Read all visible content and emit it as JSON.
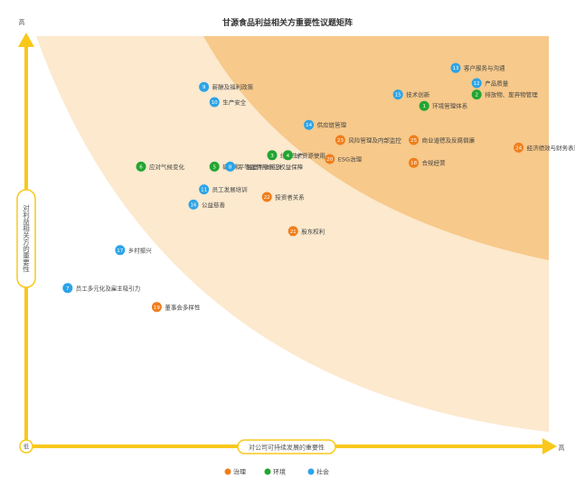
{
  "chart_data": {
    "type": "scatter",
    "title": "甘源食品利益相关方重要性议题矩阵",
    "xlabel": "对公司可持续发展的重要性",
    "ylabel": "对利益相关方的重要性",
    "x_high": "高",
    "y_high": "高",
    "origin_label": "低",
    "categories": [
      {
        "key": "gov",
        "name": "治理",
        "color": "#F07E1B"
      },
      {
        "key": "env",
        "name": "环境",
        "color": "#22A631"
      },
      {
        "key": "soc",
        "name": "社会",
        "color": "#2CA4E8"
      }
    ],
    "points": [
      {
        "id": "1",
        "label": "环境管理体系",
        "cat": "env",
        "x": 7.4,
        "y": 8.4
      },
      {
        "id": "2",
        "label": "排放物、废弃物管理",
        "cat": "env",
        "x": 8.4,
        "y": 8.7
      },
      {
        "id": "3",
        "label": "绿色生产",
        "cat": "env",
        "x": 4.5,
        "y": 7.1
      },
      {
        "id": "4",
        "label": "水资源使用",
        "cat": "env",
        "x": 4.8,
        "y": 7.1
      },
      {
        "id": "5",
        "label": "碳中和、温室气体排放",
        "cat": "env",
        "x": 3.4,
        "y": 6.8
      },
      {
        "id": "6",
        "label": "应对气候变化",
        "cat": "env",
        "x": 2.0,
        "y": 6.8
      },
      {
        "id": "7",
        "label": "员工多元化及雇主吸引力",
        "cat": "soc",
        "x": 0.6,
        "y": 3.6
      },
      {
        "id": "8",
        "label": "平等雇佣与员工权益保障",
        "cat": "soc",
        "x": 3.7,
        "y": 6.8
      },
      {
        "id": "9",
        "label": "薪酬及福利政策",
        "cat": "soc",
        "x": 3.2,
        "y": 8.9
      },
      {
        "id": "10",
        "label": "生产安全",
        "cat": "soc",
        "x": 3.4,
        "y": 8.5
      },
      {
        "id": "11",
        "label": "员工发展培训",
        "cat": "soc",
        "x": 3.2,
        "y": 6.2
      },
      {
        "id": "12",
        "label": "产品质量",
        "cat": "soc",
        "x": 8.4,
        "y": 9.0
      },
      {
        "id": "13",
        "label": "客户服务与沟通",
        "cat": "soc",
        "x": 8.0,
        "y": 9.4
      },
      {
        "id": "14",
        "label": "供应链管理",
        "cat": "soc",
        "x": 5.2,
        "y": 7.9
      },
      {
        "id": "15",
        "label": "技术创新",
        "cat": "soc",
        "x": 6.9,
        "y": 8.7
      },
      {
        "id": "16",
        "label": "公益慈善",
        "cat": "soc",
        "x": 3.0,
        "y": 5.8
      },
      {
        "id": "17",
        "label": "乡村振兴",
        "cat": "soc",
        "x": 1.6,
        "y": 4.6
      },
      {
        "id": "18",
        "label": "合规经营",
        "cat": "gov",
        "x": 7.2,
        "y": 6.9
      },
      {
        "id": "19",
        "label": "董事会多样性",
        "cat": "gov",
        "x": 2.3,
        "y": 3.1
      },
      {
        "id": "20",
        "label": "ESG治理",
        "cat": "gov",
        "x": 5.6,
        "y": 7.0
      },
      {
        "id": "21",
        "label": "股东权利",
        "cat": "gov",
        "x": 4.9,
        "y": 5.1
      },
      {
        "id": "22",
        "label": "投资者关系",
        "cat": "gov",
        "x": 4.4,
        "y": 6.0
      },
      {
        "id": "23",
        "label": "风险管理及内部监控",
        "cat": "gov",
        "x": 5.8,
        "y": 7.5
      },
      {
        "id": "24",
        "label": "经济绩效与财务表现",
        "cat": "gov",
        "x": 9.2,
        "y": 7.3
      },
      {
        "id": "25",
        "label": "商业道德及反腐倡廉",
        "cat": "gov",
        "x": 7.2,
        "y": 7.5
      }
    ]
  },
  "colors": {
    "axis": "#F9C81A",
    "band_light": "#FCE9CE",
    "band_dark": "#F7C98A",
    "title": "#333333",
    "text": "#555555"
  }
}
